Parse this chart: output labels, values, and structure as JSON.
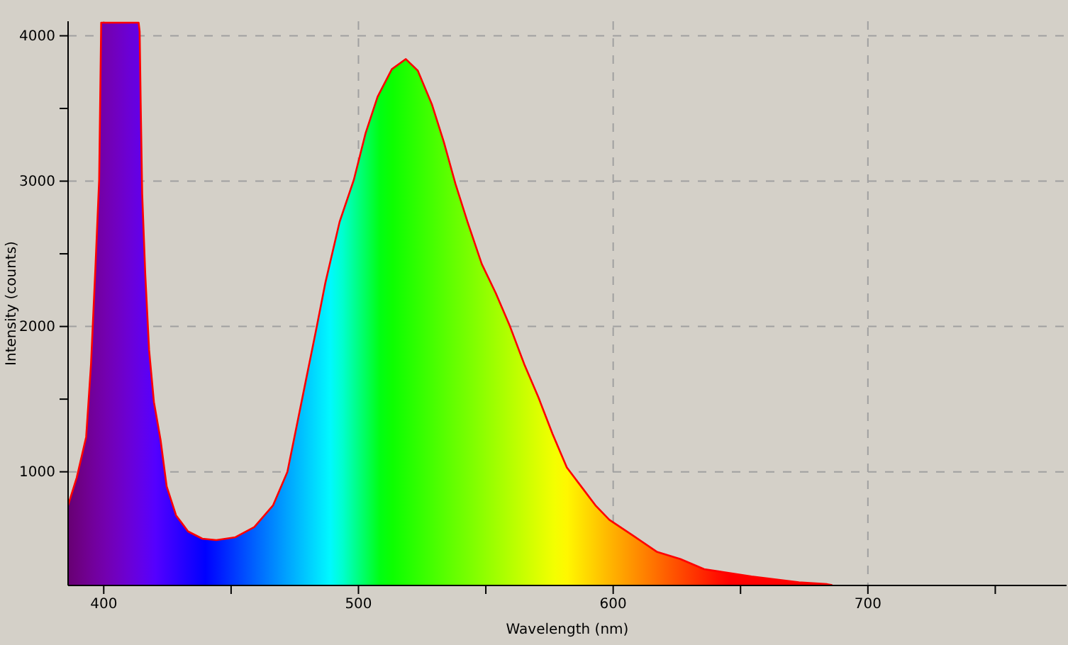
{
  "chart_data": {
    "type": "area",
    "xlabel": "Wavelength (nm)",
    "ylabel": "Intensity (counts)",
    "xlim": [
      386,
      778
    ],
    "ylim": [
      218,
      4100
    ],
    "xticks": [
      400,
      {
        "value": 450,
        "label": null
      },
      500,
      {
        "value": 550,
        "label": null
      },
      600,
      {
        "value": 650,
        "label": null
      },
      700,
      {
        "value": 750,
        "label": null
      }
    ],
    "yticks": [
      1000,
      {
        "value": 1500,
        "label": null
      },
      2000,
      {
        "value": 2500,
        "label": null
      },
      3000,
      {
        "value": 3500,
        "label": null
      },
      4000
    ],
    "grid": true,
    "series": [
      {
        "color": "#ff0000",
        "x": [
          386,
          389.4,
          393.1,
          395,
          396.8,
          398.2,
          399,
          413.7,
          414.1,
          414.5,
          415.1,
          416.3,
          417.8,
          419.7,
          422.3,
          424.7,
          428.4,
          433.1,
          438.7,
          444.2,
          451.7,
          459.1,
          466.5,
          472.1,
          475.8,
          479.6,
          483.3,
          487,
          492.6,
          498.2,
          502.8,
          507.5,
          513.1,
          518.6,
          523.3,
          528.8,
          533.5,
          538.1,
          542.8,
          548.4,
          553.9,
          559.5,
          565.1,
          570.7,
          576.2,
          581.8,
          587.4,
          593,
          598.5,
          607.9,
          617.1,
          626.4,
          635.7,
          654.3,
          672.9,
          684,
          686
        ],
        "values": [
          770,
          960,
          1240,
          1740,
          2430,
          3010,
          4090,
          4090,
          4030,
          3540,
          2910,
          2360,
          1840,
          1480,
          1220,
          900,
          700,
          590,
          540,
          530,
          550,
          620,
          770,
          1000,
          1320,
          1650,
          1970,
          2300,
          2720,
          3010,
          3330,
          3580,
          3770,
          3840,
          3760,
          3530,
          3270,
          2980,
          2720,
          2430,
          2230,
          2000,
          1740,
          1510,
          1260,
          1030,
          900,
          770,
          670,
          560,
          450,
          400,
          330,
          280,
          240,
          227,
          220
        ]
      }
    ]
  }
}
